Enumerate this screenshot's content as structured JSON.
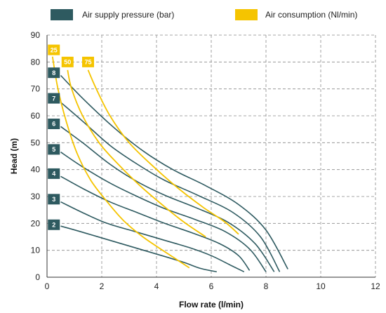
{
  "chart_data": {
    "type": "line",
    "xlabel": "Flow rate (l/min)",
    "ylabel": "Head (m)",
    "xlim": [
      0,
      12
    ],
    "ylim": [
      0,
      90
    ],
    "xticks": [
      0,
      2,
      4,
      6,
      8,
      10,
      12
    ],
    "yticks": [
      0,
      10,
      20,
      30,
      40,
      50,
      60,
      70,
      80,
      90
    ],
    "grid": true,
    "legend_position": "top",
    "colors": {
      "pressure": "#2e5a60",
      "consumption": "#f5c400",
      "grid": "#8a8a8a",
      "axis": "#333333"
    },
    "legend": [
      {
        "key": "pressure",
        "label": "Air supply pressure (bar)"
      },
      {
        "key": "consumption",
        "label": "Air consumption (Nl/min)"
      }
    ],
    "pressure_series": [
      {
        "name": "2",
        "badge": [
          0.25,
          19.5
        ],
        "points": [
          [
            0.5,
            19
          ],
          [
            1.2,
            17
          ],
          [
            2.2,
            14
          ],
          [
            3.2,
            11
          ],
          [
            4.2,
            8
          ],
          [
            5.0,
            5.5
          ],
          [
            5.6,
            3.3
          ],
          [
            6.2,
            2
          ]
        ]
      },
      {
        "name": "3",
        "badge": [
          0.25,
          29
        ],
        "points": [
          [
            0.5,
            28
          ],
          [
            1.3,
            24
          ],
          [
            2.2,
            20
          ],
          [
            3.2,
            17
          ],
          [
            4.2,
            14
          ],
          [
            5.2,
            11
          ],
          [
            6.0,
            8
          ],
          [
            6.7,
            4.5
          ],
          [
            7.2,
            2
          ]
        ]
      },
      {
        "name": "4",
        "badge": [
          0.25,
          38.5
        ],
        "points": [
          [
            0.5,
            37.5
          ],
          [
            1.3,
            33
          ],
          [
            2.3,
            28
          ],
          [
            3.3,
            24
          ],
          [
            4.3,
            20
          ],
          [
            5.3,
            16.5
          ],
          [
            6.3,
            12.5
          ],
          [
            7.0,
            8
          ],
          [
            7.4,
            2.5
          ]
        ]
      },
      {
        "name": "5",
        "badge": [
          0.25,
          47.5
        ],
        "points": [
          [
            0.5,
            46.5
          ],
          [
            1.3,
            41
          ],
          [
            2.3,
            35
          ],
          [
            3.3,
            30
          ],
          [
            4.3,
            25.5
          ],
          [
            5.4,
            21.5
          ],
          [
            6.5,
            17
          ],
          [
            7.4,
            10.5
          ],
          [
            8.0,
            2
          ]
        ]
      },
      {
        "name": "6",
        "badge": [
          0.25,
          57
        ],
        "points": [
          [
            0.5,
            56
          ],
          [
            1.3,
            50
          ],
          [
            2.3,
            42
          ],
          [
            3.3,
            35.5
          ],
          [
            4.3,
            30.5
          ],
          [
            5.4,
            26
          ],
          [
            6.6,
            20.5
          ],
          [
            7.6,
            12.5
          ],
          [
            8.3,
            2
          ]
        ]
      },
      {
        "name": "7",
        "badge": [
          0.25,
          66.5
        ],
        "points": [
          [
            0.5,
            65
          ],
          [
            1.3,
            58
          ],
          [
            2.3,
            49
          ],
          [
            3.3,
            42
          ],
          [
            4.3,
            36
          ],
          [
            5.5,
            30.5
          ],
          [
            6.8,
            24
          ],
          [
            7.8,
            15
          ],
          [
            8.5,
            2
          ]
        ]
      },
      {
        "name": "8",
        "badge": [
          0.25,
          76
        ],
        "points": [
          [
            0.5,
            75
          ],
          [
            1.3,
            66.5
          ],
          [
            2.4,
            56
          ],
          [
            3.5,
            47
          ],
          [
            4.6,
            40
          ],
          [
            5.8,
            34
          ],
          [
            7.0,
            27
          ],
          [
            8.0,
            17.5
          ],
          [
            8.8,
            3
          ]
        ]
      }
    ],
    "consumption_series": [
      {
        "name": "25",
        "badge": [
          0.25,
          84.5
        ],
        "points": [
          [
            0.2,
            82
          ],
          [
            0.4,
            70
          ],
          [
            0.7,
            58
          ],
          [
            1.1,
            46
          ],
          [
            1.6,
            36
          ],
          [
            2.2,
            28
          ],
          [
            2.8,
            21
          ],
          [
            3.5,
            15
          ],
          [
            4.3,
            9.5
          ],
          [
            5.2,
            3.5
          ]
        ]
      },
      {
        "name": "50",
        "badge": [
          0.75,
          80
        ],
        "points": [
          [
            0.75,
            77
          ],
          [
            0.9,
            70
          ],
          [
            1.3,
            60
          ],
          [
            1.9,
            50
          ],
          [
            2.6,
            42
          ],
          [
            3.4,
            34
          ],
          [
            4.2,
            27
          ],
          [
            5.0,
            20.5
          ],
          [
            5.8,
            15
          ]
        ]
      },
      {
        "name": "75",
        "badge": [
          1.5,
          80
        ],
        "points": [
          [
            1.5,
            77
          ],
          [
            1.8,
            70
          ],
          [
            2.3,
            60
          ],
          [
            3.0,
            50
          ],
          [
            3.9,
            41
          ],
          [
            4.8,
            33
          ],
          [
            5.7,
            26
          ],
          [
            6.5,
            20.5
          ],
          [
            7.0,
            16
          ]
        ]
      }
    ]
  }
}
